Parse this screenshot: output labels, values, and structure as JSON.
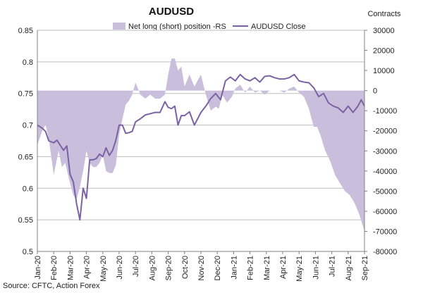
{
  "chart_data": {
    "type": "line+area",
    "title": "AUDUSD",
    "right_axis_title": "Contracts",
    "source": "Source: CFTC, Action Forex",
    "x_labels": [
      "Jan-20",
      "Feb-20",
      "Mar-20",
      "Apr-20",
      "May-20",
      "Jun-20",
      "Jul-20",
      "Aug-20",
      "Sep-20",
      "Oct-20",
      "Nov-20",
      "Dec-20",
      "Jan-21",
      "Feb-21",
      "Mar-21",
      "Apr-21",
      "May-21",
      "Jun-21",
      "Jul-21",
      "Aug-21",
      "Sep-21"
    ],
    "y_left": {
      "ticks": [
        "0.5",
        "0.55",
        "0.6",
        "0.65",
        "0.7",
        "0.75",
        "0.8",
        "0.85"
      ],
      "min": 0.5,
      "max": 0.85
    },
    "y_right": {
      "ticks": [
        "-80000",
        "-70000",
        "-60000",
        "-50000",
        "-40000",
        "-30000",
        "-20000",
        "-10000",
        "0",
        "10000",
        "20000",
        "30000"
      ],
      "min": -80000,
      "max": 30000
    },
    "grid": "horizontal",
    "legend_position": "top",
    "colors": {
      "area": "#c9bfdc",
      "line": "#7a62a3",
      "grid": "#bdbdbd",
      "axis": "#808080"
    },
    "series": [
      {
        "name": "Net long (short) position -RS",
        "axis": "right",
        "type": "area",
        "x": [
          0,
          0.3,
          0.5,
          0.7,
          1.0,
          1.3,
          1.5,
          1.7,
          2.0,
          2.2,
          2.4,
          2.6,
          2.8,
          3.0,
          3.2,
          3.4,
          3.6,
          3.8,
          4.0,
          4.2,
          4.4,
          4.6,
          4.8,
          5.0,
          5.2,
          5.4,
          5.6,
          5.8,
          6.0,
          6.3,
          6.6,
          6.9,
          7.2,
          7.5,
          7.8,
          8.0,
          8.2,
          8.4,
          8.6,
          8.8,
          9.0,
          9.3,
          9.6,
          10.0,
          10.3,
          10.6,
          10.9,
          11.1,
          11.3,
          11.6,
          11.9,
          12.1,
          12.4,
          12.7,
          13.0,
          13.3,
          13.6,
          13.9,
          14.2,
          14.5,
          14.8,
          15.1,
          15.4,
          15.7,
          16.0,
          16.3,
          16.6,
          16.9,
          17.1,
          17.3,
          17.6,
          17.9,
          18.2,
          18.5,
          18.8,
          19.1,
          19.4,
          19.7,
          20.0
        ],
        "values": [
          -27000,
          -20000,
          -17000,
          -24000,
          -42000,
          -30000,
          -38000,
          -36000,
          -46000,
          -52000,
          -54000,
          -48000,
          -40000,
          -30000,
          -36000,
          -38000,
          -38000,
          -36000,
          -32000,
          -40000,
          -41000,
          -41000,
          -37000,
          -22000,
          -14000,
          -7000,
          -5000,
          -2000,
          4000,
          -2000,
          -4000,
          -2000,
          -4000,
          -4000,
          -2000,
          8000,
          16000,
          16000,
          10000,
          12000,
          2000,
          8000,
          2000,
          8000,
          -2000,
          -10000,
          -8000,
          -9000,
          -2000,
          -6000,
          -3000,
          1000,
          3000,
          -1000,
          2000,
          -1000,
          0,
          -2000,
          0,
          0,
          0,
          -1000,
          1000,
          2000,
          -1000,
          -3000,
          -9000,
          -18000,
          -18000,
          -22000,
          -30000,
          -35000,
          -42000,
          -46000,
          -50000,
          -52000,
          -56000,
          -62000,
          -70000
        ]
      },
      {
        "name": "AUDUSD Close",
        "axis": "left",
        "type": "line",
        "x": [
          0,
          0.3,
          0.5,
          0.7,
          1.0,
          1.2,
          1.4,
          1.6,
          1.8,
          2.0,
          2.2,
          2.4,
          2.6,
          2.8,
          3.0,
          3.2,
          3.4,
          3.6,
          3.8,
          4.0,
          4.2,
          4.4,
          4.6,
          4.8,
          5.0,
          5.2,
          5.4,
          5.6,
          5.8,
          6.0,
          6.3,
          6.6,
          6.9,
          7.2,
          7.5,
          7.8,
          8.0,
          8.2,
          8.4,
          8.6,
          8.8,
          9.0,
          9.3,
          9.6,
          10.0,
          10.3,
          10.6,
          10.9,
          11.2,
          11.5,
          11.8,
          12.1,
          12.4,
          12.7,
          13.0,
          13.3,
          13.6,
          13.9,
          14.2,
          14.5,
          14.8,
          15.1,
          15.4,
          15.7,
          16.0,
          16.3,
          16.6,
          16.9,
          17.2,
          17.5,
          17.8,
          18.1,
          18.4,
          18.7,
          19.0,
          19.3,
          19.6,
          19.8,
          20.0
        ],
        "values": [
          0.7,
          0.695,
          0.69,
          0.675,
          0.672,
          0.676,
          0.668,
          0.66,
          0.667,
          0.622,
          0.61,
          0.575,
          0.55,
          0.6,
          0.584,
          0.645,
          0.645,
          0.647,
          0.654,
          0.65,
          0.664,
          0.652,
          0.66,
          0.676,
          0.7,
          0.7,
          0.687,
          0.688,
          0.69,
          0.705,
          0.71,
          0.716,
          0.718,
          0.72,
          0.72,
          0.737,
          0.728,
          0.726,
          0.73,
          0.7,
          0.715,
          0.715,
          0.721,
          0.7,
          0.72,
          0.73,
          0.742,
          0.75,
          0.74,
          0.77,
          0.776,
          0.77,
          0.78,
          0.773,
          0.77,
          0.775,
          0.768,
          0.777,
          0.778,
          0.775,
          0.773,
          0.773,
          0.775,
          0.78,
          0.77,
          0.768,
          0.767,
          0.759,
          0.745,
          0.75,
          0.735,
          0.73,
          0.727,
          0.72,
          0.73,
          0.72,
          0.73,
          0.74,
          0.73
        ]
      }
    ]
  }
}
